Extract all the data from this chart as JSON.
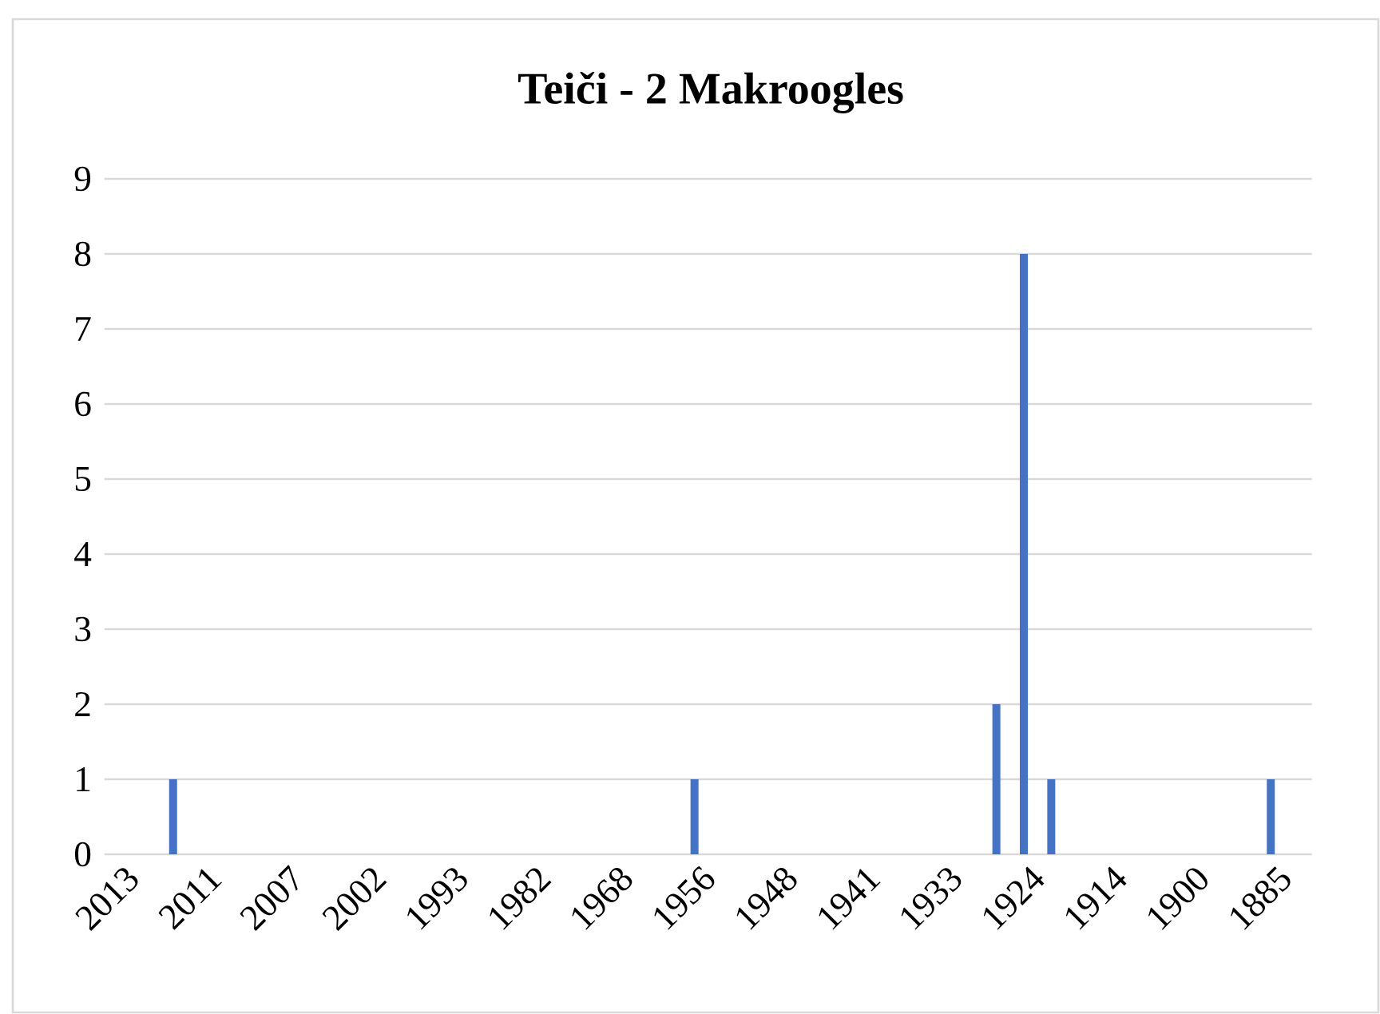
{
  "chart_data": {
    "type": "bar",
    "title": "Teiči - 2 Makroogles",
    "categories": [
      "2013",
      null,
      null,
      "2011",
      null,
      null,
      "2007",
      null,
      null,
      "2002",
      null,
      null,
      "1993",
      null,
      null,
      "1982",
      null,
      null,
      "1968",
      null,
      null,
      "1956",
      null,
      null,
      "1948",
      null,
      null,
      "1941",
      null,
      null,
      "1933",
      null,
      null,
      "1924",
      null,
      null,
      "1914",
      null,
      null,
      "1900",
      null,
      null,
      "1885",
      null
    ],
    "values": [
      0,
      0,
      1,
      0,
      0,
      0,
      0,
      0,
      0,
      0,
      0,
      0,
      0,
      0,
      0,
      0,
      0,
      0,
      0,
      0,
      0,
      1,
      0,
      0,
      0,
      0,
      0,
      0,
      0,
      0,
      0,
      0,
      2,
      8,
      1,
      0,
      0,
      0,
      0,
      0,
      0,
      0,
      1,
      0
    ],
    "color": "#4472c4",
    "ylim": [
      0,
      9
    ],
    "yticks": [
      0,
      1,
      2,
      3,
      4,
      5,
      6,
      7,
      8,
      9
    ],
    "grid": "y"
  }
}
